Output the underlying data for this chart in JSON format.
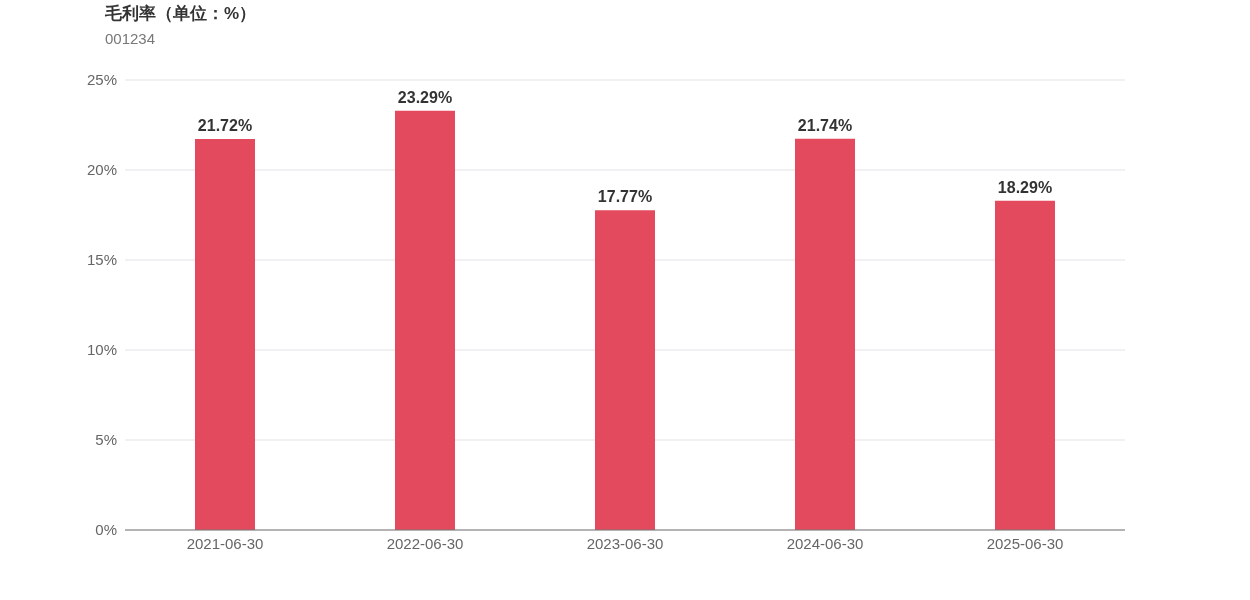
{
  "chart_data": {
    "type": "bar",
    "title": "毛利率（单位：%）",
    "subtitle": "001234",
    "categories": [
      "2021-06-30",
      "2022-06-30",
      "2023-06-30",
      "2024-06-30",
      "2025-06-30"
    ],
    "values": [
      21.72,
      23.29,
      17.77,
      21.74,
      18.29
    ],
    "value_labels": [
      "21.72%",
      "23.29%",
      "17.77%",
      "21.74%",
      "18.29%"
    ],
    "color": "#e34a5e",
    "ylim": [
      0,
      25
    ],
    "yticks": [
      {
        "value": 0,
        "label": "0%"
      },
      {
        "value": 5,
        "label": "5%"
      },
      {
        "value": 10,
        "label": "10%"
      },
      {
        "value": 15,
        "label": "15%"
      },
      {
        "value": 20,
        "label": "20%"
      },
      {
        "value": 25,
        "label": "25%"
      }
    ],
    "grid": "y",
    "legend": false
  }
}
